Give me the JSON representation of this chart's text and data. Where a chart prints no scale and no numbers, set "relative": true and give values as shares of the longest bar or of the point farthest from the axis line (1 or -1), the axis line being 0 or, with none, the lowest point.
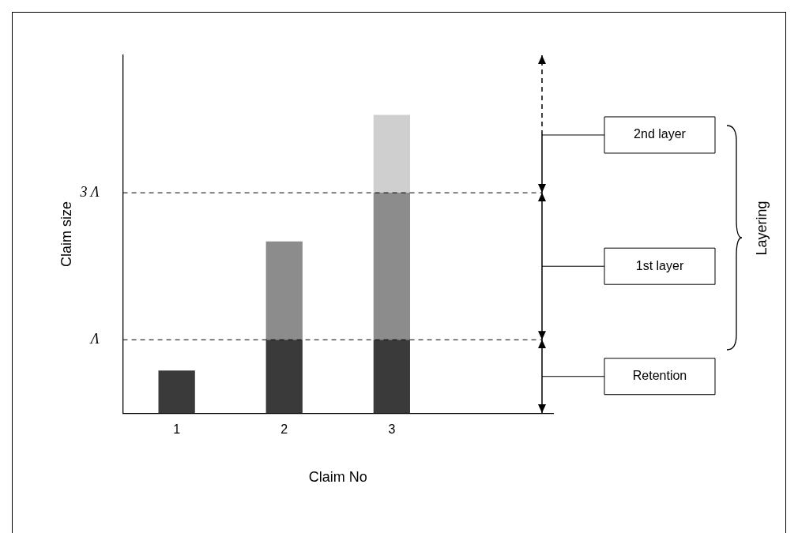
{
  "chart_data": {
    "type": "bar",
    "stacked": true,
    "relative": true,
    "xlabel": "Claim No",
    "ylabel": "Claim size",
    "categories": [
      "1",
      "2",
      "3",
      null
    ],
    "series": [
      {
        "color": "#3a3a3a",
        "values": [
          0.143,
          0.246,
          0.246,
          null
        ]
      },
      {
        "color": "#8c8c8c",
        "values": [
          0,
          0.33,
          0.493,
          null
        ]
      },
      {
        "color": "#cfcfcf",
        "values": [
          0,
          0,
          0.261,
          null
        ]
      }
    ],
    "grid": false,
    "legend": false,
    "ref_lines": [
      {
        "axis": "y",
        "value": 0.246,
        "label": "Λ",
        "line_style": "dashed"
      },
      {
        "axis": "y",
        "value": 0.739,
        "label": "3 Λ",
        "line_style": "dashed"
      }
    ],
    "annotations": [
      "Retention",
      "1st layer",
      "2nd layer",
      "Layering"
    ]
  }
}
